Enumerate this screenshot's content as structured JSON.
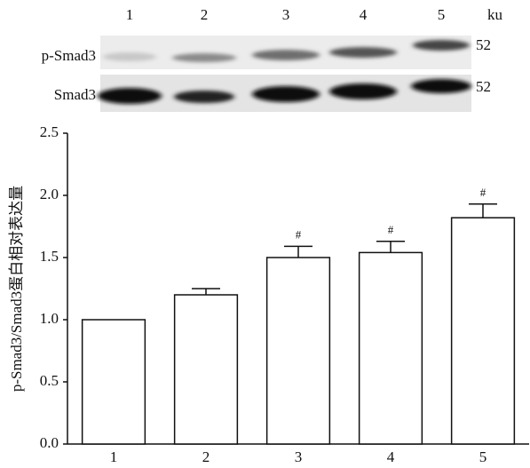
{
  "chart_data": {
    "type": "bar",
    "blot": {
      "lanes": [
        "1",
        "2",
        "3",
        "4",
        "5"
      ],
      "unit": "ku",
      "rows": [
        {
          "name": "p-Smad3",
          "size": "52"
        },
        {
          "name": "Smad3",
          "size": "52"
        }
      ]
    },
    "y_label": "p-Smad3/Smad3蛋白相对表达量",
    "categories": [
      "1",
      "2",
      "3",
      "4",
      "5"
    ],
    "values": [
      1.0,
      1.2,
      1.5,
      1.54,
      1.82
    ],
    "errors": [
      0,
      0.05,
      0.09,
      0.09,
      0.11
    ],
    "annotations": [
      null,
      null,
      "#",
      "#",
      "#"
    ],
    "color": "#ffffff",
    "ylim": [
      0,
      2.5
    ],
    "yticks": [
      {
        "value": 0,
        "label": "0.0"
      },
      0.5,
      {
        "value": 1,
        "label": "1.0"
      },
      1.5,
      {
        "value": 2,
        "label": "2.0"
      },
      2.5
    ]
  }
}
